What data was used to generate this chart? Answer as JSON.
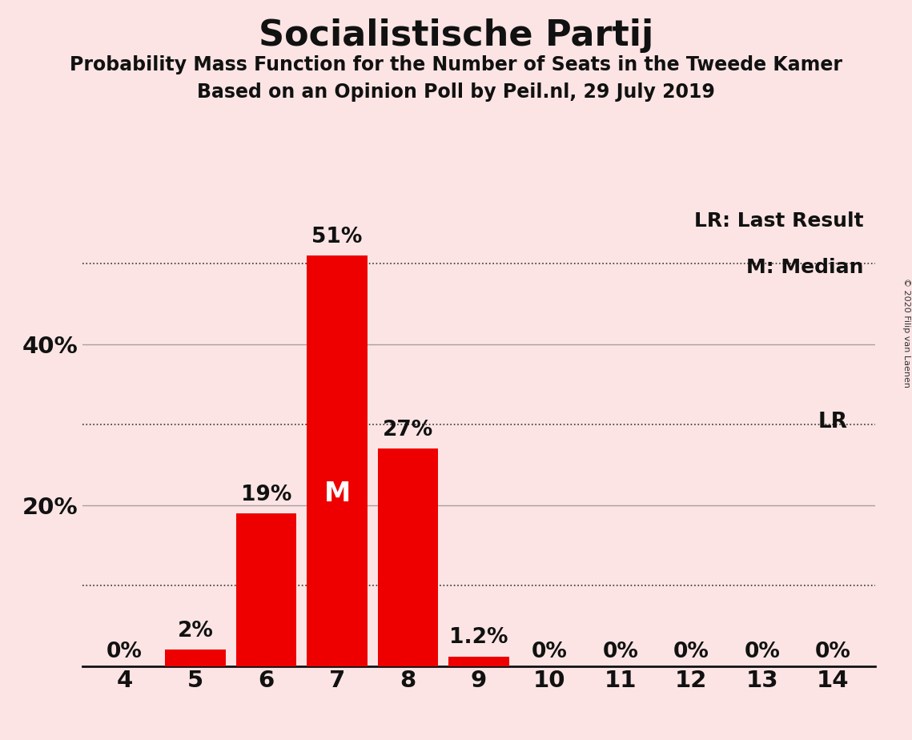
{
  "title": "Socialistische Partij",
  "subtitle1": "Probability Mass Function for the Number of Seats in the Tweede Kamer",
  "subtitle2": "Based on an Opinion Poll by Peil.nl, 29 July 2019",
  "copyright": "© 2020 Filip van Laenen",
  "categories": [
    4,
    5,
    6,
    7,
    8,
    9,
    10,
    11,
    12,
    13,
    14
  ],
  "values": [
    0,
    2,
    19,
    51,
    27,
    1.2,
    0,
    0,
    0,
    0,
    0
  ],
  "bar_color": "#ee0000",
  "background_color": "#fce4e4",
  "median_seat": 7,
  "last_result_seat": 14,
  "ytick_labels": [
    "20%",
    "40%"
  ],
  "ytick_values": [
    20,
    40
  ],
  "dotted_lines": [
    10,
    30,
    50
  ],
  "ylim": [
    0,
    57
  ],
  "legend_lr": "LR: Last Result",
  "legend_m": "M: Median",
  "bar_labels": [
    "0%",
    "2%",
    "19%",
    "51%",
    "27%",
    "1.2%",
    "0%",
    "0%",
    "0%",
    "0%",
    "0%"
  ],
  "median_label": "M",
  "lr_label": "LR"
}
